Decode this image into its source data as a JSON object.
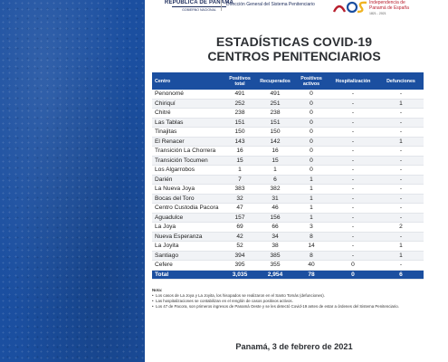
{
  "header": {
    "gov_name": "REPÚBLICA DE PANAMÁ",
    "gov_sub": "GOBIERNO NACIONAL",
    "dept_name": "Dirección General del Sistema Penitenciario",
    "bicentennial_line1": "Independencia de",
    "bicentennial_line2": "Panamá de España",
    "bicentennial_years": "1821 - 2021"
  },
  "title_line1": "ESTADÍSTICAS COVID-19",
  "title_line2": "CENTROS PENITENCIARIOS",
  "table": {
    "headers": {
      "centro": "Centro",
      "positivos_total_1": "Positivos",
      "positivos_total_2": "total",
      "recuperados": "Recuperados",
      "positivos_activos_1": "Positivos",
      "positivos_activos_2": "activos",
      "hospitalizacion": "Hospitalización",
      "defunciones": "Defunciones"
    },
    "rows": [
      {
        "centro": "Penonomé",
        "positivos_total": "491",
        "recuperados": "491",
        "activos": "0",
        "hospitalizacion": "-",
        "defunciones": "-"
      },
      {
        "centro": "Chiriquí",
        "positivos_total": "252",
        "recuperados": "251",
        "activos": "0",
        "hospitalizacion": "-",
        "defunciones": "1"
      },
      {
        "centro": "Chitré",
        "positivos_total": "238",
        "recuperados": "238",
        "activos": "0",
        "hospitalizacion": "-",
        "defunciones": "-"
      },
      {
        "centro": "Las Tablas",
        "positivos_total": "151",
        "recuperados": "151",
        "activos": "0",
        "hospitalizacion": "-",
        "defunciones": "-"
      },
      {
        "centro": "Tinajitas",
        "positivos_total": "150",
        "recuperados": "150",
        "activos": "0",
        "hospitalizacion": "-",
        "defunciones": "-"
      },
      {
        "centro": "El Renacer",
        "positivos_total": "143",
        "recuperados": "142",
        "activos": "0",
        "hospitalizacion": "-",
        "defunciones": "1"
      },
      {
        "centro": "Transición La Chorrera",
        "positivos_total": "16",
        "recuperados": "16",
        "activos": "0",
        "hospitalizacion": "-",
        "defunciones": "-"
      },
      {
        "centro": "Transición Tocumen",
        "positivos_total": "15",
        "recuperados": "15",
        "activos": "0",
        "hospitalizacion": "-",
        "defunciones": "-"
      },
      {
        "centro": "Los Algarrobos",
        "positivos_total": "1",
        "recuperados": "1",
        "activos": "0",
        "hospitalizacion": "-",
        "defunciones": "-"
      },
      {
        "centro": "Darién",
        "positivos_total": "7",
        "recuperados": "6",
        "activos": "1",
        "hospitalizacion": "-",
        "defunciones": "-"
      },
      {
        "centro": "La Nueva Joya",
        "positivos_total": "383",
        "recuperados": "382",
        "activos": "1",
        "hospitalizacion": "-",
        "defunciones": "-"
      },
      {
        "centro": "Bocas del Toro",
        "positivos_total": "32",
        "recuperados": "31",
        "activos": "1",
        "hospitalizacion": "-",
        "defunciones": "-"
      },
      {
        "centro": "Centro Custodia Pacora",
        "positivos_total": "47",
        "recuperados": "46",
        "activos": "1",
        "hospitalizacion": "-",
        "defunciones": "-"
      },
      {
        "centro": "Aguadulce",
        "positivos_total": "157",
        "recuperados": "156",
        "activos": "1",
        "hospitalizacion": "-",
        "defunciones": "-"
      },
      {
        "centro": "La Joya",
        "positivos_total": "69",
        "recuperados": "66",
        "activos": "3",
        "hospitalizacion": "-",
        "defunciones": "2"
      },
      {
        "centro": "Nueva Esperanza",
        "positivos_total": "42",
        "recuperados": "34",
        "activos": "8",
        "hospitalizacion": "-",
        "defunciones": "-"
      },
      {
        "centro": "La Joyita",
        "positivos_total": "52",
        "recuperados": "38",
        "activos": "14",
        "hospitalizacion": "-",
        "defunciones": "1"
      },
      {
        "centro": "Santiago",
        "positivos_total": "394",
        "recuperados": "385",
        "activos": "8",
        "hospitalizacion": "-",
        "defunciones": "1"
      },
      {
        "centro": "Cefere",
        "positivos_total": "395",
        "recuperados": "355",
        "activos": "40",
        "hospitalizacion": "0",
        "defunciones": "-"
      }
    ],
    "total": {
      "centro": "Total",
      "positivos_total": "3,035",
      "recuperados": "2,954",
      "activos": "78",
      "hospitalizacion": "0",
      "defunciones": "6"
    }
  },
  "notes": {
    "title": "Nota:",
    "items": [
      "Los casos de La Joya y La Joyita, los hisopados se realizaron en el Santo Tomás (defunciones).",
      "Las hospitalizaciones se contabilizan en el renglón de casos positivos activos.",
      "Los 47 de Pacora, son primeros ingresos de Panamá Oeste y se les detectó Covid-19 antes de estar a órdenes del Sistema Penitenciario."
    ]
  },
  "date": "Panamá, 3 de febrero de 2021",
  "colors": {
    "brand_blue": "#1b4fa0",
    "bicentennial_red": "#b81f2e",
    "title_text": "#2c2f33"
  }
}
